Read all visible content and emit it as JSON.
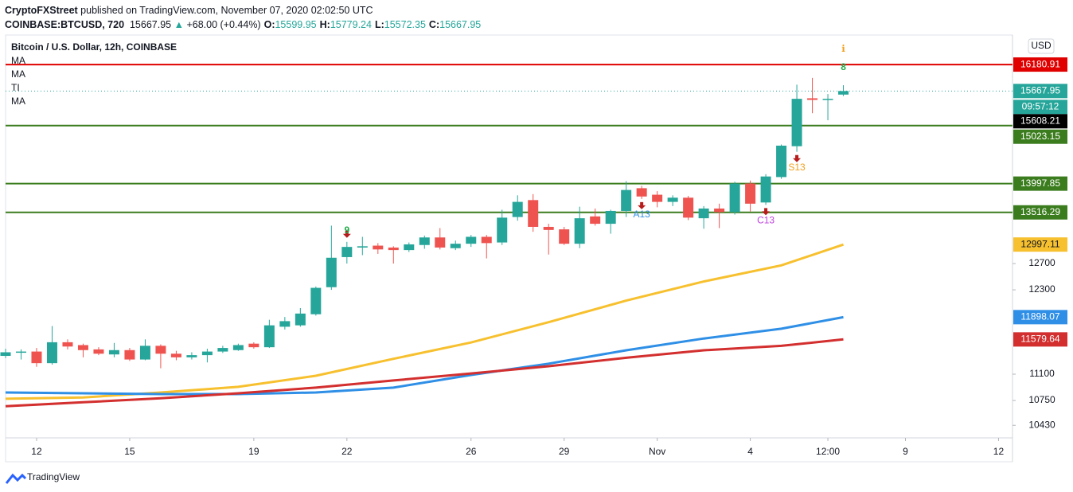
{
  "header": {
    "publisher": "CryptoFXStreet",
    "published": "published on TradingView.com, November 07, 2020 02:02:50 UTC",
    "symbol": "COINBASE:BTCUSD, 720",
    "last": "15667.95",
    "change": "+68.00 (+0.44%)",
    "ohlc": [
      {
        "label": "O:",
        "value": "15599.95"
      },
      {
        "label": "H:",
        "value": "15779.24"
      },
      {
        "label": "L:",
        "value": "15572.35"
      },
      {
        "label": "C:",
        "value": "15667.95"
      }
    ]
  },
  "footer": {
    "brand": "TradingView"
  },
  "chart_data": {
    "type": "candlestick",
    "title": "Bitcoin / U.S. Dollar, 12h, COINBASE",
    "legend": [
      "MA",
      "MA",
      "TI",
      "MA"
    ],
    "currency": "USD",
    "up_color": "#26a69a",
    "down_color": "#ef5350",
    "open": [
      11350,
      11400,
      11410,
      11250,
      11540,
      11500,
      11440,
      11370,
      11430,
      11300,
      11490,
      11380,
      11330,
      11360,
      11410,
      11430,
      11520,
      11470,
      11760,
      11780,
      11940,
      12340,
      12800,
      12950,
      12980,
      12950,
      12910,
      12990,
      13110,
      12940,
      13010,
      13120,
      13030,
      13440,
      13720,
      13280,
      13240,
      13010,
      13450,
      13330,
      13540,
      13920,
      13810,
      13690,
      13760,
      13420,
      13580,
      13520,
      14000,
      13680,
      14110,
      14650,
      15530,
      15500,
      15599.95
    ],
    "high": [
      11450,
      11440,
      11460,
      11770,
      11580,
      11520,
      11470,
      11530,
      11460,
      11580,
      11510,
      11420,
      11400,
      11450,
      11490,
      11520,
      11540,
      11860,
      11900,
      12030,
      12350,
      13300,
      13040,
      13120,
      13020,
      12970,
      13030,
      13140,
      13260,
      13060,
      13150,
      13150,
      13560,
      13800,
      13820,
      13330,
      13280,
      13610,
      13580,
      13560,
      14040,
      13960,
      13870,
      13800,
      13790,
      13620,
      13660,
      14030,
      14050,
      14160,
      14680,
      15790,
      15920,
      15610,
      15779.24
    ],
    "low": [
      11320,
      11300,
      11200,
      11230,
      11440,
      11330,
      11360,
      11330,
      11280,
      11290,
      11180,
      11290,
      11300,
      11260,
      11390,
      11420,
      11450,
      11460,
      11720,
      11760,
      11920,
      12300,
      12700,
      12830,
      12850,
      12700,
      12880,
      12930,
      12920,
      12910,
      12960,
      12780,
      12990,
      13380,
      13200,
      12840,
      12990,
      12940,
      13300,
      13170,
      13440,
      13740,
      13600,
      13620,
      13390,
      13250,
      13260,
      13480,
      13530,
      13640,
      14080,
      14550,
      15250,
      15120,
      15572.35
    ],
    "close": [
      11400,
      11410,
      11250,
      11540,
      11480,
      11430,
      11380,
      11430,
      11300,
      11490,
      11380,
      11330,
      11360,
      11410,
      11460,
      11500,
      11470,
      11780,
      11840,
      11950,
      12330,
      12790,
      12960,
      12970,
      12920,
      12910,
      13000,
      13110,
      12950,
      13010,
      13120,
      13020,
      13430,
      13690,
      13280,
      13230,
      13010,
      13420,
      13330,
      13540,
      13890,
      13780,
      13690,
      13760,
      13430,
      13580,
      13520,
      14000,
      13660,
      14120,
      14660,
      15520,
      15500,
      15520,
      15667.95
    ],
    "series": [
      {
        "color": "#f7c02e",
        "x": [
          0,
          5,
          10,
          15,
          20,
          25,
          30,
          35,
          40,
          45,
          50,
          54
        ],
        "values": [
          10773,
          10790,
          10855,
          10930,
          11078,
          11310,
          11537,
          11825,
          12140,
          12425,
          12672,
          12997.11
        ]
      },
      {
        "color": "#2f8fe6",
        "x": [
          0,
          5,
          10,
          15,
          20,
          25,
          30,
          35,
          40,
          45,
          50,
          54
        ],
        "values": [
          10855,
          10845,
          10834,
          10834,
          10855,
          10920,
          11089,
          11243,
          11427,
          11592,
          11732,
          11898.07
        ]
      },
      {
        "color": "#d32f2f",
        "x": [
          0,
          5,
          10,
          15,
          20,
          25,
          30,
          35,
          40,
          45,
          50,
          54
        ],
        "values": [
          10675,
          10727,
          10780,
          10845,
          10920,
          11015,
          11110,
          11208,
          11324,
          11427,
          11490,
          11579.64
        ]
      }
    ],
    "levels": [
      {
        "value": 16180.91,
        "color": "#e00000"
      },
      {
        "value": 15023.15,
        "color": "#3b7d1e"
      },
      {
        "value": 13997.85,
        "color": "#3b7d1e"
      },
      {
        "value": 13516.29,
        "color": "#3b7d1e"
      }
    ],
    "countdown": "09:57:12",
    "crosshair_price": 15608.21,
    "annotations": [
      {
        "label": "9",
        "color": "#22ab4a"
      },
      {
        "label": "A13",
        "color": "#2f8fe6"
      },
      {
        "label": "C13",
        "color": "#c040e0"
      },
      {
        "label": "S13",
        "color": "#f0a020"
      },
      {
        "label": "8",
        "color": "#22ab4a"
      }
    ],
    "log_scale": true,
    "ylim": [
      10272,
      16773
    ],
    "yticks": [
      12700,
      12300,
      11100,
      10750,
      10430
    ],
    "xlim": [
      0,
      64.9
    ],
    "xticks": [
      {
        "value": 2,
        "label": "12"
      },
      {
        "value": 8,
        "label": "15"
      },
      {
        "value": 16,
        "label": "19"
      },
      {
        "value": 22,
        "label": "22"
      },
      {
        "value": 30,
        "label": "26"
      },
      {
        "value": 36,
        "label": "29"
      },
      {
        "value": 42,
        "label": "Nov"
      },
      {
        "value": 48,
        "label": "4"
      },
      {
        "value": 53,
        "label": "12:00"
      },
      {
        "value": 58,
        "label": "9"
      },
      {
        "value": 64,
        "label": "12"
      }
    ]
  }
}
